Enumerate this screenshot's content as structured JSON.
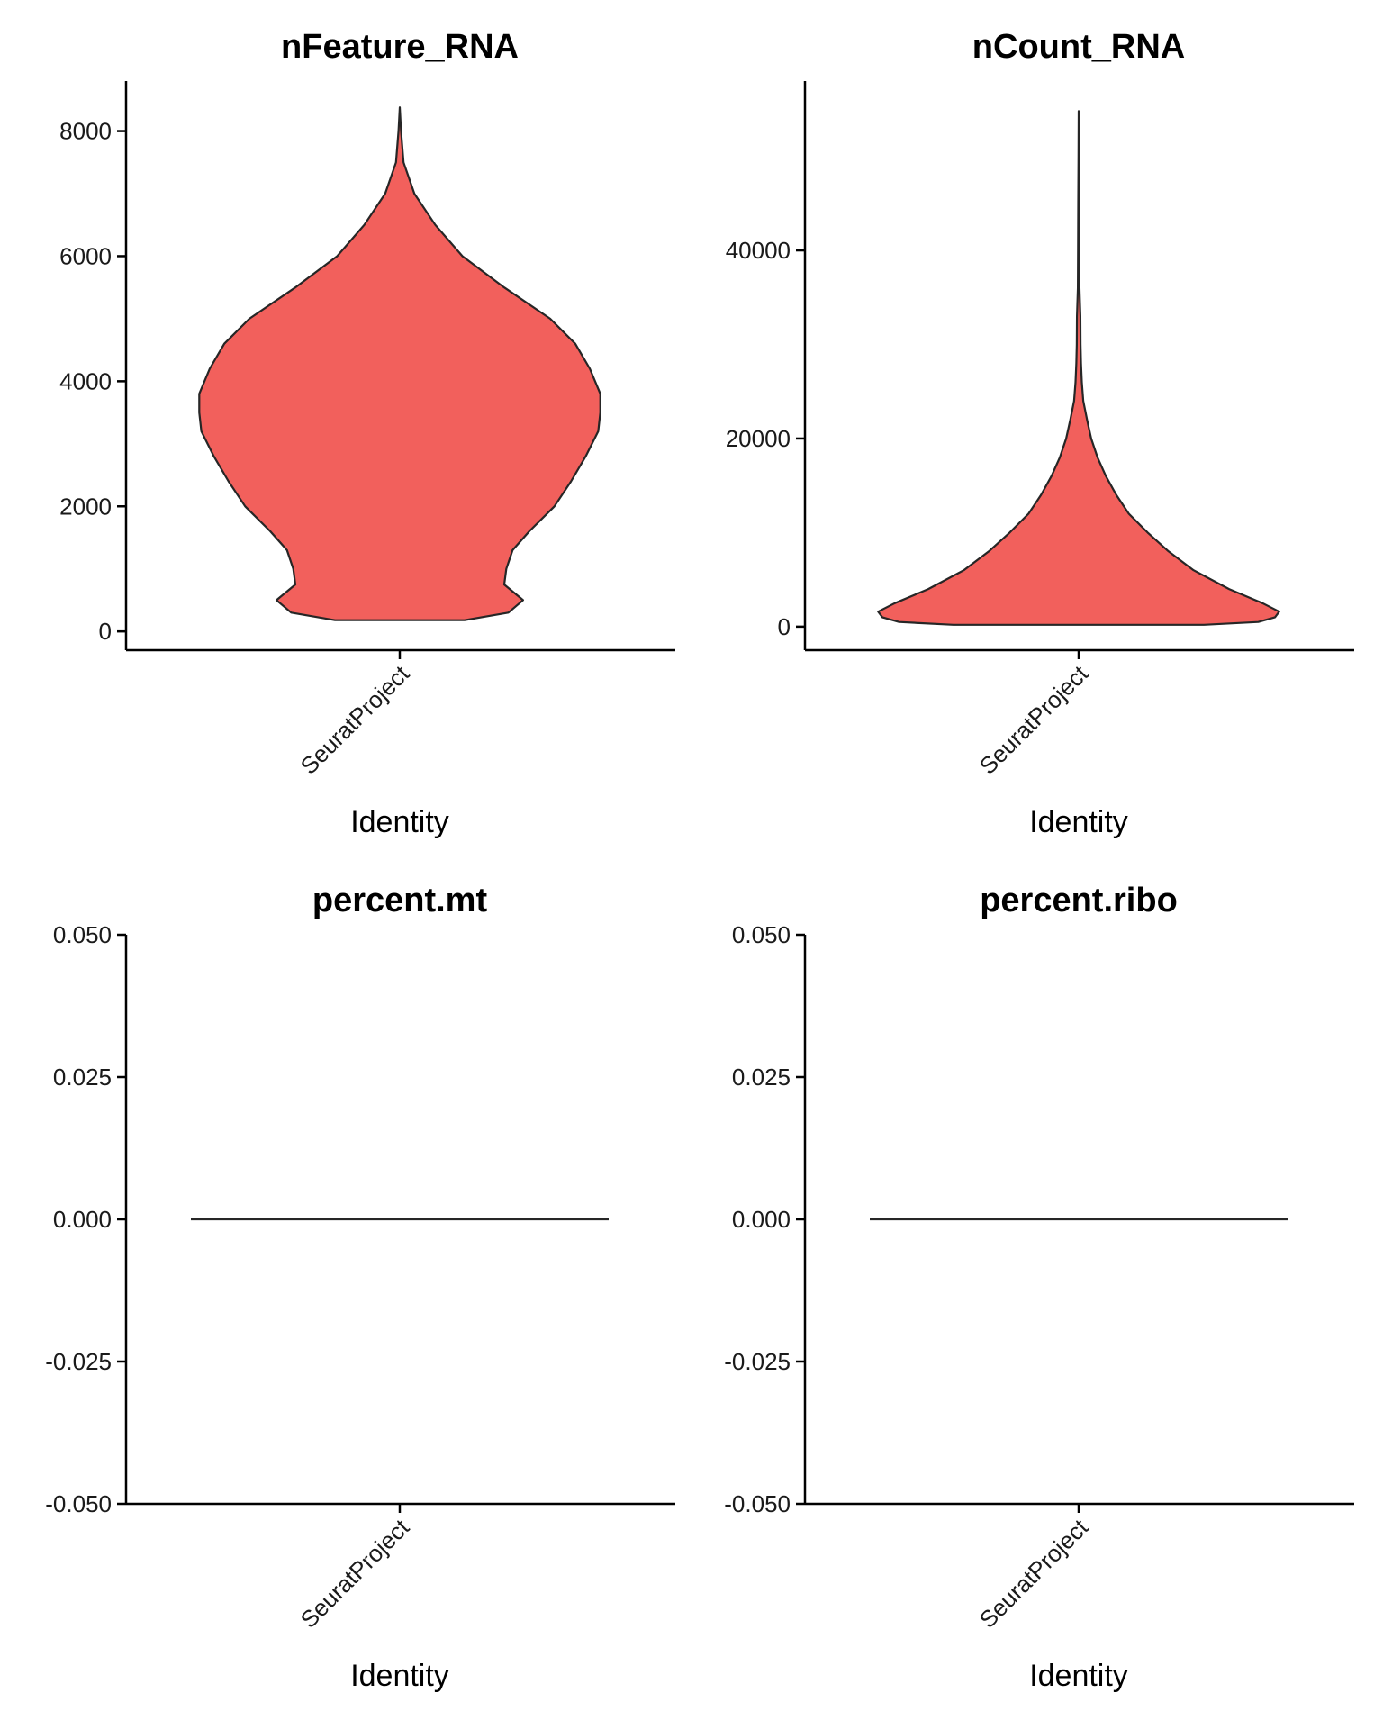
{
  "chart_data": [
    {
      "type": "violin",
      "title": "nFeature_RNA",
      "xlabel": "Identity",
      "ylabel": "",
      "categories": [
        "SeuratProject"
      ],
      "ylim": [
        -300,
        8800
      ],
      "yticks": [
        0,
        2000,
        4000,
        6000,
        8000
      ],
      "ytick_labels": [
        "0",
        "2000",
        "4000",
        "6000",
        "8000"
      ],
      "fill": "#F2605C",
      "density": [
        [
          180,
          0.31
        ],
        [
          300,
          0.52
        ],
        [
          500,
          0.59
        ],
        [
          750,
          0.5
        ],
        [
          1000,
          0.51
        ],
        [
          1300,
          0.54
        ],
        [
          1600,
          0.62
        ],
        [
          2000,
          0.74
        ],
        [
          2400,
          0.82
        ],
        [
          2800,
          0.89
        ],
        [
          3200,
          0.95
        ],
        [
          3500,
          0.96
        ],
        [
          3800,
          0.96
        ],
        [
          4200,
          0.91
        ],
        [
          4600,
          0.84
        ],
        [
          5000,
          0.72
        ],
        [
          5500,
          0.5
        ],
        [
          6000,
          0.3
        ],
        [
          6500,
          0.17
        ],
        [
          7000,
          0.07
        ],
        [
          7500,
          0.018
        ],
        [
          8000,
          0.006
        ],
        [
          8380,
          0.0
        ]
      ]
    },
    {
      "type": "violin",
      "title": "nCount_RNA",
      "xlabel": "Identity",
      "ylabel": "",
      "categories": [
        "SeuratProject"
      ],
      "ylim": [
        -2500,
        58000
      ],
      "yticks": [
        0,
        20000,
        40000
      ],
      "ytick_labels": [
        "0",
        "20000",
        "40000"
      ],
      "fill": "#F2605C",
      "density": [
        [
          200,
          0.6
        ],
        [
          500,
          0.86
        ],
        [
          1000,
          0.94
        ],
        [
          1600,
          0.96
        ],
        [
          2500,
          0.88
        ],
        [
          4000,
          0.72
        ],
        [
          6000,
          0.55
        ],
        [
          8000,
          0.43
        ],
        [
          10000,
          0.33
        ],
        [
          12000,
          0.24
        ],
        [
          14000,
          0.18
        ],
        [
          16000,
          0.13
        ],
        [
          18000,
          0.09
        ],
        [
          20000,
          0.06
        ],
        [
          22000,
          0.04
        ],
        [
          24000,
          0.022
        ],
        [
          26000,
          0.015
        ],
        [
          28000,
          0.011
        ],
        [
          30000,
          0.009
        ],
        [
          33000,
          0.008
        ],
        [
          36000,
          0.004
        ],
        [
          40000,
          0.003
        ],
        [
          45000,
          0.002
        ],
        [
          50000,
          0.001
        ],
        [
          54800,
          0.0
        ]
      ]
    },
    {
      "type": "violin",
      "title": "percent.mt",
      "xlabel": "Identity",
      "ylabel": "",
      "categories": [
        "SeuratProject"
      ],
      "ylim": [
        -0.05,
        0.05
      ],
      "yticks": [
        -0.05,
        -0.025,
        0,
        0.025,
        0.05
      ],
      "ytick_labels": [
        "-0.050",
        "-0.025",
        "0.000",
        "0.025",
        "0.050"
      ],
      "fill": "#F2605C",
      "constant_value": 0
    },
    {
      "type": "violin",
      "title": "percent.ribo",
      "xlabel": "Identity",
      "ylabel": "",
      "categories": [
        "SeuratProject"
      ],
      "ylim": [
        -0.05,
        0.05
      ],
      "yticks": [
        -0.05,
        -0.025,
        0,
        0.025,
        0.05
      ],
      "ytick_labels": [
        "-0.050",
        "-0.025",
        "0.000",
        "0.025",
        "0.050"
      ],
      "fill": "#F2605C",
      "constant_value": 0
    }
  ]
}
